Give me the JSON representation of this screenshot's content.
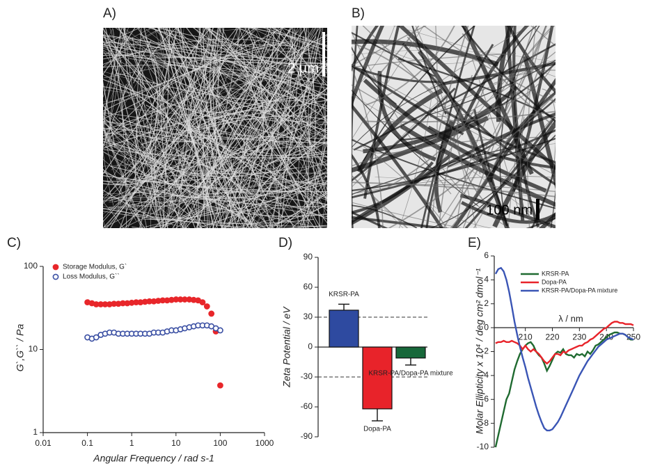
{
  "panels": [
    {
      "label": "A)",
      "scale_bar": "2 µm"
    },
    {
      "label": "B)",
      "scale_bar": "100 nm"
    }
  ],
  "chart_data": [
    {
      "type": "scatter",
      "panel_label": "C)",
      "log_x": true,
      "log_y": true,
      "x_label": "Angular Frequency / rad s-1",
      "y_label": "G`,G`` / Pa",
      "xlim": [
        0.01,
        1000
      ],
      "ylim": [
        1,
        100
      ],
      "xticks": [
        0.01,
        0.1,
        1,
        10,
        100,
        1000
      ],
      "yticks": [
        1,
        10,
        100
      ],
      "x": [
        0.1,
        0.126,
        0.158,
        0.2,
        0.251,
        0.316,
        0.398,
        0.501,
        0.631,
        0.794,
        1,
        1.26,
        1.58,
        2,
        2.51,
        3.16,
        3.98,
        5.01,
        6.31,
        7.94,
        10,
        12.6,
        15.8,
        20,
        25.1,
        31.6,
        39.8,
        50.1,
        63.1,
        79.4,
        100
      ],
      "series": [
        {
          "name": "Storage Modulus, G`",
          "color": "#e8262a",
          "marker": "filled",
          "values": [
            37,
            36,
            35,
            35,
            35,
            35,
            35.5,
            35.5,
            36,
            36,
            36.5,
            37,
            37,
            37.5,
            38,
            38,
            38.5,
            39,
            39,
            39.5,
            40,
            40,
            40,
            40,
            39.5,
            39,
            37,
            33,
            27,
            16.5,
            3.7
          ]
        },
        {
          "name": "Loss Modulus, G``",
          "color": "#3a4fa3",
          "marker": "open",
          "values": [
            14,
            13.5,
            14,
            15,
            15.5,
            16,
            16,
            15.5,
            15.5,
            15.5,
            15.5,
            15.5,
            15.5,
            15.5,
            15.5,
            16,
            16,
            16,
            16.5,
            17,
            17,
            17.5,
            18,
            18.5,
            19,
            19.5,
            19.5,
            19.5,
            19,
            18,
            17
          ]
        }
      ]
    },
    {
      "type": "bar",
      "panel_label": "D)",
      "y_label": "Zeta Potential / eV",
      "ylim": [
        -90,
        90
      ],
      "yticks": [
        90,
        60,
        30,
        0,
        -30,
        -60,
        -90
      ],
      "reference_lines": [
        30,
        -30
      ],
      "categories": [
        "KRSR-PA",
        "Dopa-PA",
        "KRSR-PA/Dopa-PA mixture"
      ],
      "values": [
        37,
        -62,
        -11
      ],
      "errors": [
        6,
        12,
        7
      ],
      "colors": [
        "#2e4aa0",
        "#e8232a",
        "#17683a"
      ]
    },
    {
      "type": "line",
      "panel_label": "E)",
      "x_label": "λ / nm",
      "y_label": "Molar Ellipticity x 10⁴ /  deg cm² dmol⁻¹",
      "xlim": [
        198.5,
        250
      ],
      "ylim": [
        -10,
        6
      ],
      "xticks": [
        210,
        220,
        230,
        240,
        250
      ],
      "yticks": [
        6,
        4,
        2,
        0,
        -2,
        -4,
        -6,
        -8,
        -10
      ],
      "x": [
        199,
        200,
        201,
        202,
        203,
        204,
        205,
        206,
        207,
        208,
        209,
        210,
        211,
        212,
        213,
        214,
        215,
        216,
        217,
        218,
        219,
        220,
        221,
        222,
        223,
        224,
        225,
        226,
        227,
        228,
        229,
        230,
        231,
        232,
        233,
        234,
        235,
        236,
        237,
        238,
        239,
        240,
        241,
        242,
        243,
        244,
        245,
        246,
        247,
        248,
        249,
        250
      ],
      "series": [
        {
          "name": "KRSR-PA",
          "color": "#1f6a30",
          "values": [
            -10,
            -9,
            -8,
            -7,
            -6,
            -5.5,
            -4.5,
            -3.5,
            -2.8,
            -2.2,
            -1.8,
            -1.5,
            -1.3,
            -1.2,
            -1.5,
            -2,
            -2.3,
            -2.5,
            -3,
            -3.6,
            -3.2,
            -2.7,
            -2.2,
            -2,
            -2.1,
            -1.8,
            -2.2,
            -2.3,
            -2.3,
            -2.5,
            -2.2,
            -2.3,
            -2.2,
            -2.4,
            -2,
            -2.2,
            -1.9,
            -1.5,
            -1.4,
            -1.2,
            -1,
            -0.8,
            -0.6,
            -0.5,
            -0.4,
            -0.4,
            -0.5,
            -0.5,
            -0.6,
            -0.8,
            -1,
            -1
          ]
        },
        {
          "name": "Dopa-PA",
          "color": "#e8232a",
          "values": [
            -1.3,
            -1.2,
            -1.2,
            -1.1,
            -1.2,
            -1.2,
            -1.1,
            -1.2,
            -1.3,
            -1.5,
            -1.8,
            -1.5,
            -1.8,
            -2,
            -1.8,
            -2,
            -2.2,
            -2.5,
            -2.8,
            -3,
            -2.8,
            -2.5,
            -2.2,
            -2.2,
            -2.3,
            -2,
            -2.1,
            -1.9,
            -1.8,
            -1.7,
            -1.6,
            -1.5,
            -1.5,
            -1.3,
            -1.2,
            -1,
            -0.9,
            -0.7,
            -0.5,
            -0.3,
            -0.1,
            0,
            0.2,
            0.4,
            0.5,
            0.5,
            0.4,
            0.4,
            0.3,
            0.3,
            0.3,
            0.2
          ]
        },
        {
          "name": "KRSR-PA/Dopa-PA mixture",
          "color": "#3a55b5",
          "values": [
            4.5,
            4.9,
            5,
            4.7,
            4,
            3,
            1.8,
            0.5,
            -0.6,
            -1.6,
            -2.5,
            -3.3,
            -4.2,
            -5,
            -5.8,
            -6.6,
            -7.3,
            -7.9,
            -8.4,
            -8.6,
            -8.6,
            -8.5,
            -8.2,
            -7.9,
            -7.5,
            -7,
            -6.5,
            -6,
            -5.5,
            -5,
            -4.5,
            -4,
            -3.6,
            -3.2,
            -2.8,
            -2.5,
            -2.2,
            -1.9,
            -1.6,
            -1.4,
            -1.2,
            -1,
            -0.9,
            -0.8,
            -0.7,
            -0.6,
            -0.5,
            -0.5,
            -0.6,
            -0.8,
            -0.9,
            -1
          ]
        }
      ]
    }
  ]
}
